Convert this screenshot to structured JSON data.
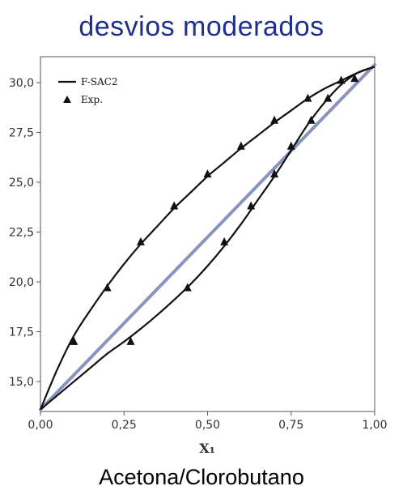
{
  "title": "desvios moderados",
  "caption": "Acetona/Clorobutano",
  "chart_data": {
    "type": "line",
    "xlabel": "X₁",
    "ylabel": "",
    "xlim": [
      0,
      1
    ],
    "ylim": [
      13.5,
      31.3
    ],
    "xticks": [
      "0,00",
      "0,25",
      "0,50",
      "0,75",
      "1,00"
    ],
    "xtick_values": [
      0,
      0.25,
      0.5,
      0.75,
      1
    ],
    "yticks": [
      "15,0",
      "17,5",
      "20,0",
      "22,5",
      "25,0",
      "27,5",
      "30,0"
    ],
    "ytick_values": [
      15,
      17.5,
      20,
      22.5,
      25,
      27.5,
      30
    ],
    "legend": {
      "position": "top-left",
      "entries": [
        "F-SAC2",
        "Exp."
      ]
    },
    "grid": false,
    "colors": {
      "model": "#111111",
      "ideal": "#8a94c0",
      "exp": "#111111"
    },
    "series": [
      {
        "name": "F-SAC2",
        "role": "bubble",
        "x": [
          0,
          0.05,
          0.1,
          0.15,
          0.2,
          0.25,
          0.3,
          0.35,
          0.4,
          0.45,
          0.5,
          0.55,
          0.6,
          0.65,
          0.7,
          0.75,
          0.8,
          0.85,
          0.9,
          0.95,
          1.0
        ],
        "y": [
          13.6,
          15.6,
          17.3,
          18.6,
          19.8,
          20.9,
          21.9,
          22.8,
          23.7,
          24.5,
          25.3,
          26.0,
          26.7,
          27.35,
          28.0,
          28.6,
          29.2,
          29.7,
          30.1,
          30.5,
          30.8
        ]
      },
      {
        "name": "F-SAC2",
        "role": "dew",
        "x": [
          0,
          0.05,
          0.1,
          0.15,
          0.2,
          0.25,
          0.3,
          0.35,
          0.4,
          0.45,
          0.5,
          0.55,
          0.6,
          0.65,
          0.7,
          0.75,
          0.8,
          0.85,
          0.9,
          0.95,
          1.0
        ],
        "y": [
          13.6,
          14.3,
          15.0,
          15.7,
          16.4,
          17.0,
          17.65,
          18.35,
          19.1,
          19.9,
          20.8,
          21.8,
          22.9,
          24.1,
          25.3,
          26.6,
          27.9,
          29.0,
          29.9,
          30.5,
          30.8
        ]
      },
      {
        "name": "",
        "role": "ideal",
        "x": [
          0,
          1
        ],
        "y": [
          13.6,
          30.9
        ]
      },
      {
        "name": "Exp.",
        "role": "bubble-exp",
        "x": [
          0.1,
          0.2,
          0.3,
          0.4,
          0.5,
          0.6,
          0.7,
          0.8,
          0.9,
          0.94
        ],
        "y": [
          17.0,
          19.7,
          22.0,
          23.8,
          25.4,
          26.8,
          28.1,
          29.2,
          30.1,
          30.2
        ]
      },
      {
        "name": "Exp.",
        "role": "dew-exp",
        "x": [
          0.27,
          0.44,
          0.55,
          0.63,
          0.7,
          0.75,
          0.81,
          0.86
        ],
        "y": [
          17.0,
          19.7,
          22.0,
          23.8,
          25.4,
          26.8,
          28.1,
          29.2
        ]
      }
    ]
  }
}
